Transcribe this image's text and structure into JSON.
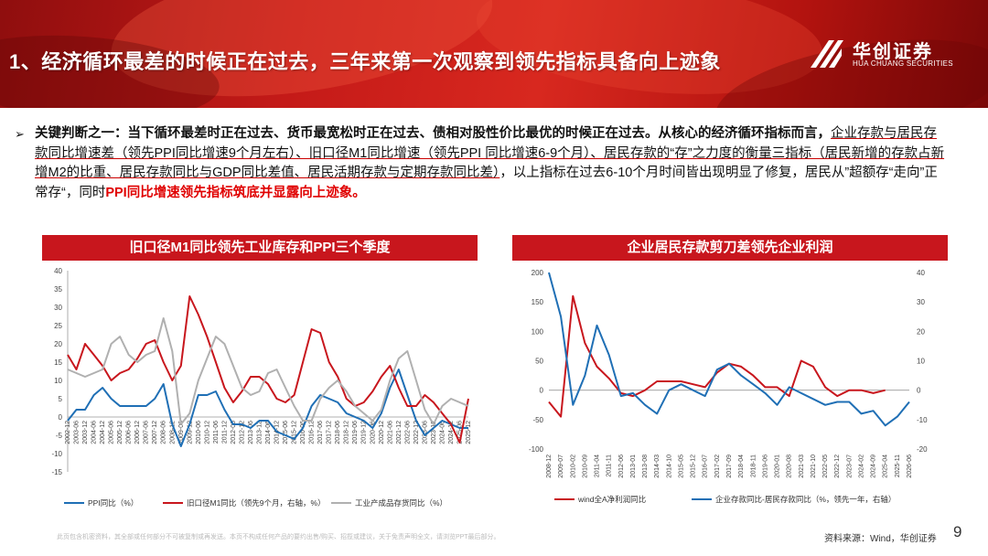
{
  "header": {
    "title": "1、经济循环最差的时候正在过去，三年来第一次观察到领先指标具备向上迹象",
    "logo_name": "华创证券",
    "logo_sub": "HUA CHUANG SECURITIES"
  },
  "paragraph": {
    "part1": "关键判断之一：当下循环最差时正在过去、货币最宽松时正在过去、债相对股性价比最优的时候正在过去。从核心的经济循环指标而言，",
    "part2": "企业存款与居民存款同比增速差（领先PPI同比增速9个月左右）、旧口径M1同比增速（领先PPI 同比增速6-9个月）、居民存款的“存”之力度的衡量三指标（居民新增的存款占新增M2的比重、居民存款同比与GDP同比差值、居民活期存款与定期存款同比差）",
    "part3": "，以上指标在过去6-10个月时间皆出现明显了修复，居民从”超额存“走向”正常存“，同时",
    "part4": "PPI同比增速领先指标筑底并显露向上迹象。"
  },
  "colors": {
    "blue": "#1f6fb5",
    "red": "#c8161d",
    "gray": "#b0b0b0",
    "title_bg": "#c8161d"
  },
  "chart_data": [
    {
      "type": "line",
      "title": "旧口径M1同比领先工业库存和PPI三个季度",
      "ylim": [
        -15,
        40
      ],
      "yticks": [
        -15,
        -10,
        -5,
        0,
        5,
        10,
        15,
        20,
        25,
        30,
        35,
        40
      ],
      "x": [
        "2002-12",
        "2003-06",
        "2003-12",
        "2004-06",
        "2004-12",
        "2005-06",
        "2005-12",
        "2006-06",
        "2006-12",
        "2007-06",
        "2007-12",
        "2008-06",
        "2008-12",
        "2009-06",
        "2009-12",
        "2010-06",
        "2010-12",
        "2011-06",
        "2011-12",
        "2012-06",
        "2012-12",
        "2013-06",
        "2013-12",
        "2014-06",
        "2014-12",
        "2015-06",
        "2015-12",
        "2016-06",
        "2016-12",
        "2017-06",
        "2017-12",
        "2018-06",
        "2018-12",
        "2019-06",
        "2019-12",
        "2020-06",
        "2020-12",
        "2021-06",
        "2021-12",
        "2022-06",
        "2022-12",
        "2023-06",
        "2023-12",
        "2024-06",
        "2024-12",
        "2025-06",
        "2025-12"
      ],
      "series": [
        {
          "name": "PPI同比（%）",
          "color": "#1f6fb5",
          "values": [
            -1,
            2,
            2,
            6,
            8,
            5,
            3,
            3,
            3,
            3,
            5,
            9,
            -2,
            -8,
            -2,
            6,
            6,
            7,
            2,
            -2,
            -2,
            -3,
            -1,
            -1,
            -4,
            -5,
            -6,
            -3,
            3,
            6,
            5,
            4,
            1,
            0,
            -1,
            -3,
            1,
            8,
            13,
            6,
            -1,
            -5,
            -3,
            -1,
            -2,
            -3,
            -3
          ]
        },
        {
          "name": "旧口径M1同比（领先9个月，右轴，%）",
          "color": "#c8161d",
          "values": [
            17,
            13,
            20,
            17,
            14,
            10,
            12,
            13,
            16,
            20,
            21,
            15,
            10,
            14,
            33,
            28,
            22,
            15,
            8,
            4,
            7,
            11,
            11,
            9,
            5,
            4,
            6,
            15,
            24,
            23,
            15,
            11,
            5,
            3,
            4,
            7,
            11,
            14,
            8,
            3,
            3,
            6,
            4,
            1,
            -2,
            -7,
            5
          ]
        },
        {
          "name": "工业产成品存货同比（%）",
          "color": "#b0b0b0",
          "values": [
            13,
            12,
            11,
            12,
            13,
            20,
            22,
            17,
            15,
            17,
            18,
            27,
            18,
            -2,
            1,
            10,
            16,
            22,
            20,
            14,
            8,
            6,
            7,
            12,
            13,
            8,
            3,
            -1,
            -1,
            5,
            8,
            10,
            7,
            3,
            1,
            -1,
            2,
            10,
            16,
            18,
            10,
            2,
            -2,
            3,
            5,
            4,
            3
          ]
        }
      ],
      "legend": "bottom"
    },
    {
      "type": "line",
      "title": "企业居民存款剪刀差领先企业利润",
      "ylim": [
        -100,
        200
      ],
      "yticks_left": [
        -100,
        -50,
        0,
        50,
        100,
        150,
        200
      ],
      "ylim_right": [
        -20,
        40
      ],
      "yticks_right": [
        -20,
        -10,
        0,
        10,
        20,
        30,
        40
      ],
      "x": [
        "2008-12",
        "2009-07",
        "2010-02",
        "2010-09",
        "2011-04",
        "2011-11",
        "2012-06",
        "2013-01",
        "2013-08",
        "2014-03",
        "2014-10",
        "2015-05",
        "2015-12",
        "2016-07",
        "2017-02",
        "2017-09",
        "2018-04",
        "2018-11",
        "2019-06",
        "2020-01",
        "2020-08",
        "2021-03",
        "2021-10",
        "2022-05",
        "2022-12",
        "2023-07",
        "2024-02",
        "2024-09",
        "2025-04",
        "2025-11",
        "2026-06"
      ],
      "series": [
        {
          "name": "wind全A净利润同比",
          "color": "#c8161d",
          "axis": "left",
          "values": [
            -20,
            -45,
            160,
            80,
            40,
            20,
            -5,
            -10,
            0,
            15,
            15,
            15,
            10,
            5,
            30,
            45,
            40,
            25,
            5,
            5,
            -10,
            50,
            40,
            5,
            -10,
            0,
            0,
            -5,
            0,
            null,
            null
          ]
        },
        {
          "name": "企业存款同比-居民存款同比（%，领先一年，右轴）",
          "color": "#1f6fb5",
          "axis": "right",
          "values": [
            40,
            25,
            -5,
            5,
            22,
            12,
            -2,
            -1,
            -5,
            -8,
            0,
            2,
            0,
            -2,
            7,
            9,
            5,
            2,
            -1,
            -5,
            1,
            -1,
            -3,
            -5,
            -4,
            -4,
            -8,
            -7,
            -12,
            -9,
            -4
          ]
        }
      ],
      "legend": "bottom"
    }
  ],
  "source": "资料来源：Wind，华创证券",
  "disclaimer": "此页包含机密资料，其全部或任何部分不可被复制或再发送。本页不构成任何产品的要约出售/购买、招揽或建议，关于免责声明全文，请浏览PPT最后部分。",
  "page_number": "9"
}
